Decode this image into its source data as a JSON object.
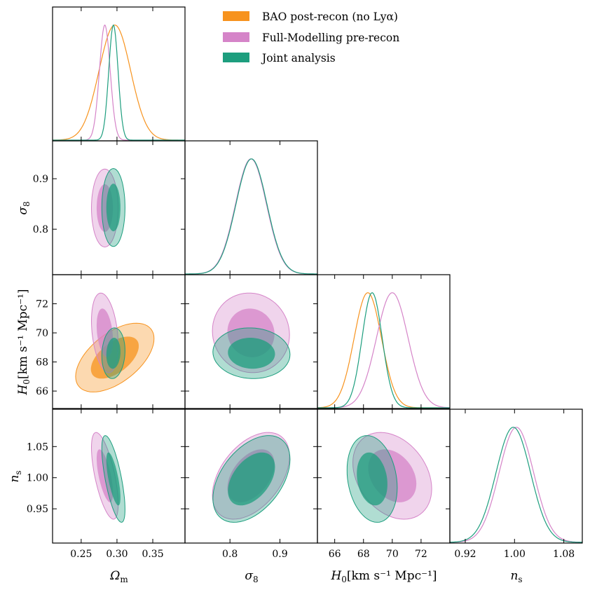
{
  "chart_data": {
    "type": "corner",
    "parameters": [
      {
        "key": "om",
        "label": "Ω",
        "sub": "m",
        "range": [
          0.21,
          0.395
        ],
        "ticks": [
          0.25,
          0.3,
          0.35
        ],
        "tick_labels": [
          "0.25",
          "0.30",
          "0.35"
        ]
      },
      {
        "key": "s8",
        "label": "σ",
        "sub": "8",
        "range": [
          0.71,
          0.975
        ],
        "ticks": [
          0.8,
          0.9
        ],
        "tick_labels": [
          "0.8",
          "0.9"
        ]
      },
      {
        "key": "h0",
        "label": "H",
        "sub": "0",
        "unit": "[km s⁻¹ Mpc⁻¹]",
        "range": [
          64.8,
          74.0
        ],
        "ticks": [
          66,
          68,
          70,
          72
        ],
        "tick_labels": [
          "66",
          "68",
          "70",
          "72"
        ]
      },
      {
        "key": "ns",
        "label": "n",
        "sub": "s",
        "range": [
          0.895,
          1.11
        ],
        "ticks": [
          0.95,
          1.0,
          1.05
        ],
        "tick_labels": [
          "0.95",
          "1.00",
          "1.05"
        ],
        "x_ticks": [
          0.92,
          1.0,
          1.08
        ],
        "x_tick_labels": [
          "0.92",
          "1.00",
          "1.08"
        ]
      }
    ],
    "series": [
      {
        "name": "BAO post-recon (no Lyα)",
        "color": "#f7931e",
        "params": [
          "om",
          "h0"
        ],
        "mean": {
          "om": 0.297,
          "h0": 68.3
        },
        "sigma": {
          "om": 0.022,
          "h0": 0.95
        },
        "corr": {
          "om_h0": 0.55
        }
      },
      {
        "name": "Full-Modelling pre-recon",
        "color": "#d584c8",
        "params": [
          "om",
          "s8",
          "h0",
          "ns"
        ],
        "mean": {
          "om": 0.283,
          "s8": 0.842,
          "h0": 70.0,
          "ns": 1.003
        },
        "sigma": {
          "om": 0.0075,
          "s8": 0.031,
          "h0": 1.1,
          "ns": 0.028
        },
        "corr": {
          "om_s8": 0.0,
          "om_h0": -0.3,
          "om_ns": -0.65,
          "s8_h0": -0.05,
          "s8_ns": 0.45,
          "h0_ns": -0.3
        }
      },
      {
        "name": "Joint analysis",
        "color": "#1d9e7e",
        "params": [
          "om",
          "s8",
          "h0",
          "ns"
        ],
        "mean": {
          "om": 0.295,
          "s8": 0.843,
          "h0": 68.6,
          "ns": 0.998
        },
        "sigma": {
          "om": 0.0065,
          "s8": 0.031,
          "h0": 0.7,
          "ns": 0.028
        },
        "corr": {
          "om_s8": 0.0,
          "om_h0": 0.1,
          "om_ns": -0.7,
          "s8_h0": -0.05,
          "s8_ns": 0.45,
          "h0_ns": -0.2
        }
      }
    ],
    "legend": [
      "BAO post-recon (no Lyα)",
      "Full-Modelling pre-recon",
      "Joint analysis"
    ],
    "legend_position": "top-right",
    "contour_levels": [
      "68%",
      "95%"
    ]
  }
}
